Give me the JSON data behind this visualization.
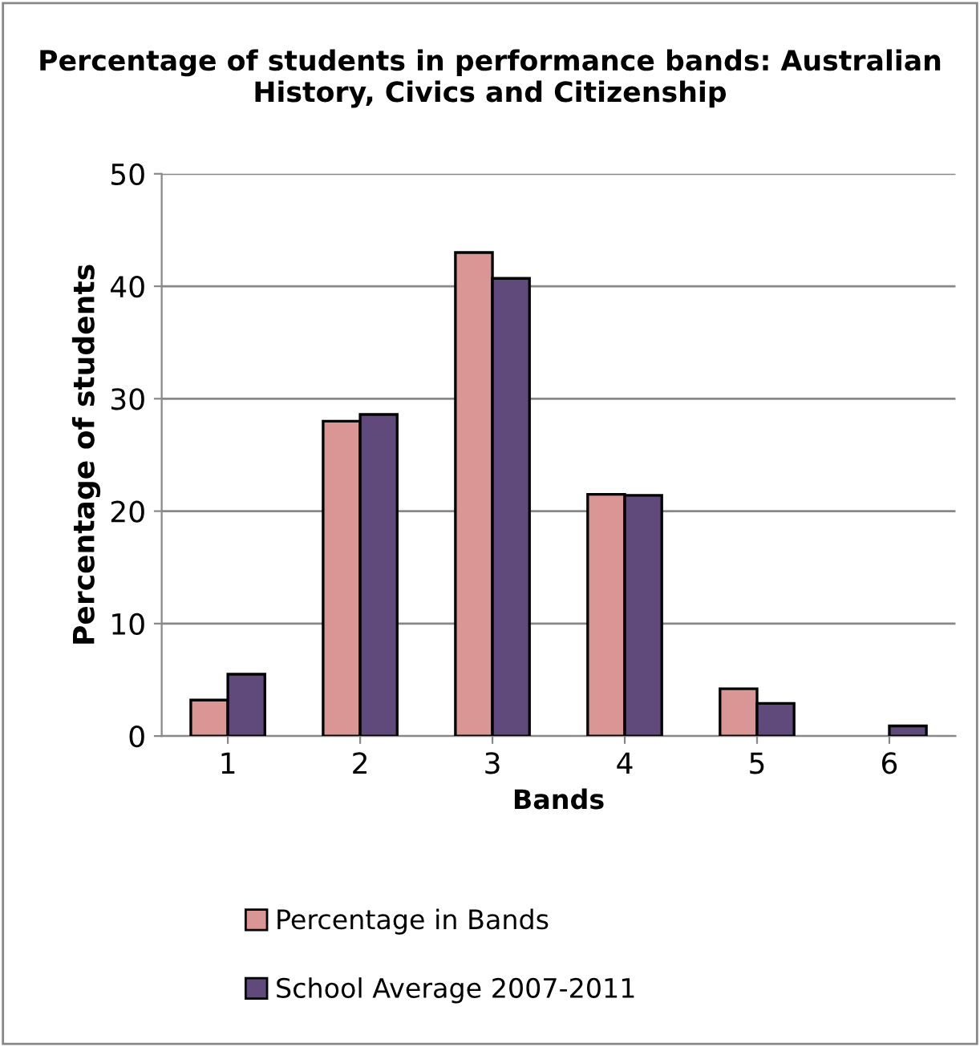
{
  "chart_data": {
    "type": "bar",
    "title": "Percentage of students in performance bands: Australian History, Civics and Citizenship",
    "xlabel": "Bands",
    "ylabel": "Percentage of students",
    "categories": [
      "1",
      "2",
      "3",
      "4",
      "5",
      "6"
    ],
    "series": [
      {
        "name": "Percentage in Bands",
        "color": "#d99694",
        "values": [
          3.2,
          28.0,
          43.0,
          21.5,
          4.2,
          null
        ]
      },
      {
        "name": "School Average 2007-2011",
        "color": "#604a7b",
        "values": [
          5.5,
          28.6,
          40.7,
          21.4,
          2.9,
          0.9
        ]
      }
    ],
    "ylim": [
      0,
      50
    ],
    "yticks": [
      0,
      10,
      20,
      30,
      40,
      50
    ],
    "grid": "y",
    "legend": "bottom"
  }
}
